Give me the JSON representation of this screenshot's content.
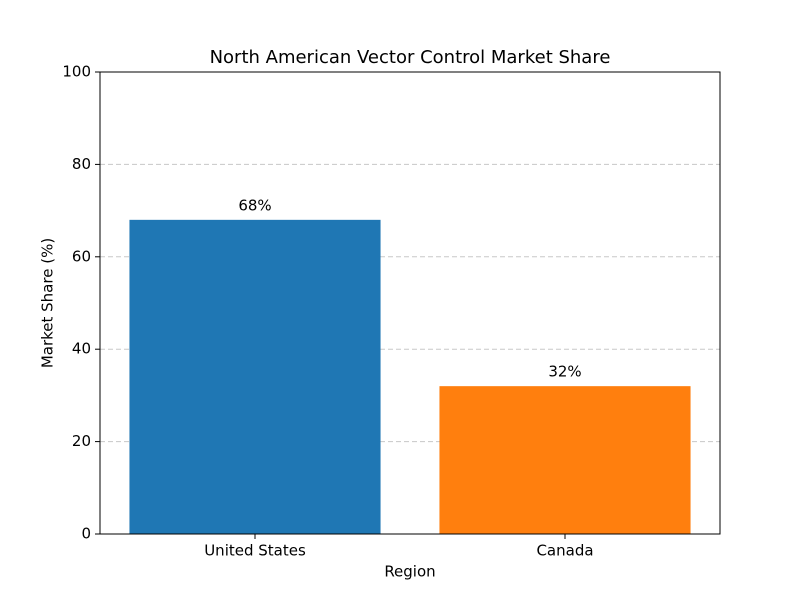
{
  "chart_data": {
    "type": "bar",
    "title": "North American Vector Control Market Share",
    "categories": [
      "United States",
      "Canada"
    ],
    "values": [
      68,
      32
    ],
    "value_labels": [
      "68%",
      "32%"
    ],
    "colors": [
      "#1f77b4",
      "#ff7f0e"
    ],
    "xlabel": "Region",
    "ylabel": "Market Share (%)",
    "ylim": [
      0,
      100
    ],
    "yticks": [
      0,
      20,
      40,
      60,
      80,
      100
    ],
    "grid": true
  }
}
